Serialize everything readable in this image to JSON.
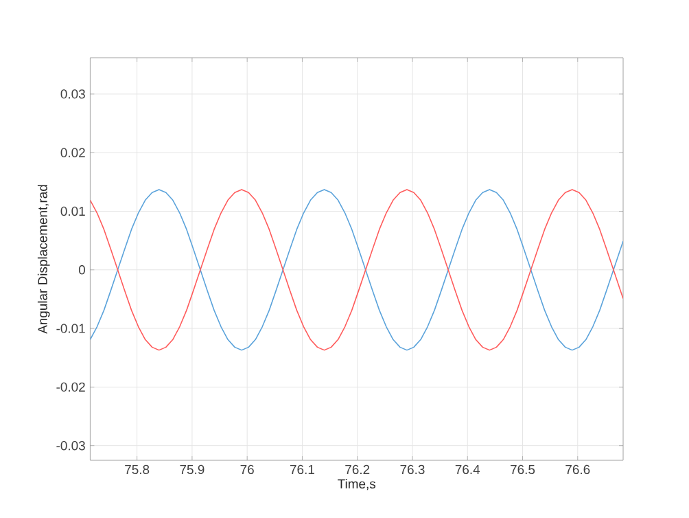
{
  "chart_data": {
    "type": "line",
    "xlabel": "Time,s",
    "ylabel": "Angular Displacement,rad",
    "xlim": [
      75.715,
      76.6825
    ],
    "ylim": [
      -0.0325,
      0.0362
    ],
    "xticks": [
      75.8,
      75.9,
      76,
      76.1,
      76.2,
      76.3,
      76.4,
      76.5,
      76.6
    ],
    "yticks": [
      -0.03,
      -0.02,
      -0.01,
      0,
      0.01,
      0.02,
      0.03
    ],
    "grid": true,
    "marker": "none",
    "line_style": "solid",
    "x": [
      75.715,
      75.7275,
      75.74,
      75.7525,
      75.765,
      75.7775,
      75.79,
      75.8025,
      75.815,
      75.8275,
      75.84,
      75.8525,
      75.865,
      75.8775,
      75.89,
      75.9025,
      75.915,
      75.9275,
      75.94,
      75.9525,
      75.965,
      75.9775,
      75.99,
      76.0025,
      76.015,
      76.0275,
      76.04,
      76.0525,
      76.065,
      76.0775,
      76.09,
      76.1025,
      76.115,
      76.1275,
      76.14,
      76.1525,
      76.165,
      76.1775,
      76.19,
      76.2025,
      76.215,
      76.2275,
      76.24,
      76.2525,
      76.265,
      76.2775,
      76.29,
      76.3025,
      76.315,
      76.3275,
      76.34,
      76.3525,
      76.365,
      76.3775,
      76.39,
      76.4025,
      76.415,
      76.4275,
      76.44,
      76.4525,
      76.465,
      76.4775,
      76.49,
      76.5025,
      76.515,
      76.5275,
      76.54,
      76.5525,
      76.565,
      76.5775,
      76.59,
      76.6025,
      76.615,
      76.6275,
      76.64,
      76.6525,
      76.665,
      76.6775,
      76.6825
    ],
    "series": [
      {
        "color": "#5ba3db",
        "values": [
          -0.0119,
          -0.0097,
          -0.0069,
          -0.0035,
          0,
          0.0035,
          0.0069,
          0.0097,
          0.0119,
          0.0132,
          0.0137,
          0.0132,
          0.0119,
          0.0097,
          0.0069,
          0.0035,
          0,
          -0.0035,
          -0.0069,
          -0.0097,
          -0.0119,
          -0.0132,
          -0.0137,
          -0.0132,
          -0.0119,
          -0.0097,
          -0.0069,
          -0.0035,
          0,
          0.0035,
          0.0069,
          0.0097,
          0.0119,
          0.0132,
          0.0137,
          0.0132,
          0.0119,
          0.0097,
          0.0069,
          0.0035,
          0,
          -0.0035,
          -0.0069,
          -0.0097,
          -0.0119,
          -0.0132,
          -0.0137,
          -0.0132,
          -0.0119,
          -0.0097,
          -0.0069,
          -0.0035,
          0,
          0.0035,
          0.0069,
          0.0097,
          0.0119,
          0.0132,
          0.0137,
          0.0132,
          0.0119,
          0.0097,
          0.0069,
          0.0035,
          0,
          -0.0035,
          -0.0069,
          -0.0097,
          -0.0119,
          -0.0132,
          -0.0137,
          -0.0132,
          -0.0119,
          -0.0097,
          -0.0069,
          -0.0035,
          0,
          0.0035,
          0.0049
        ]
      },
      {
        "color": "#ff5c5c",
        "values": [
          0.0119,
          0.0097,
          0.0069,
          0.0035,
          0,
          -0.0035,
          -0.0069,
          -0.0097,
          -0.0119,
          -0.0132,
          -0.0137,
          -0.0132,
          -0.0119,
          -0.0097,
          -0.0069,
          -0.0035,
          0,
          0.0035,
          0.0069,
          0.0097,
          0.0119,
          0.0132,
          0.0137,
          0.0132,
          0.0119,
          0.0097,
          0.0069,
          0.0035,
          0,
          -0.0035,
          -0.0069,
          -0.0097,
          -0.0119,
          -0.0132,
          -0.0137,
          -0.0132,
          -0.0119,
          -0.0097,
          -0.0069,
          -0.0035,
          0,
          0.0035,
          0.0069,
          0.0097,
          0.0119,
          0.0132,
          0.0137,
          0.0132,
          0.0119,
          0.0097,
          0.0069,
          0.0035,
          0,
          -0.0035,
          -0.0069,
          -0.0097,
          -0.0119,
          -0.0132,
          -0.0137,
          -0.0132,
          -0.0119,
          -0.0097,
          -0.0069,
          -0.0035,
          0,
          0.0035,
          0.0069,
          0.0097,
          0.0119,
          0.0132,
          0.0137,
          0.0132,
          0.0119,
          0.0097,
          0.0069,
          0.0035,
          0,
          -0.0035,
          -0.0049
        ]
      }
    ]
  }
}
